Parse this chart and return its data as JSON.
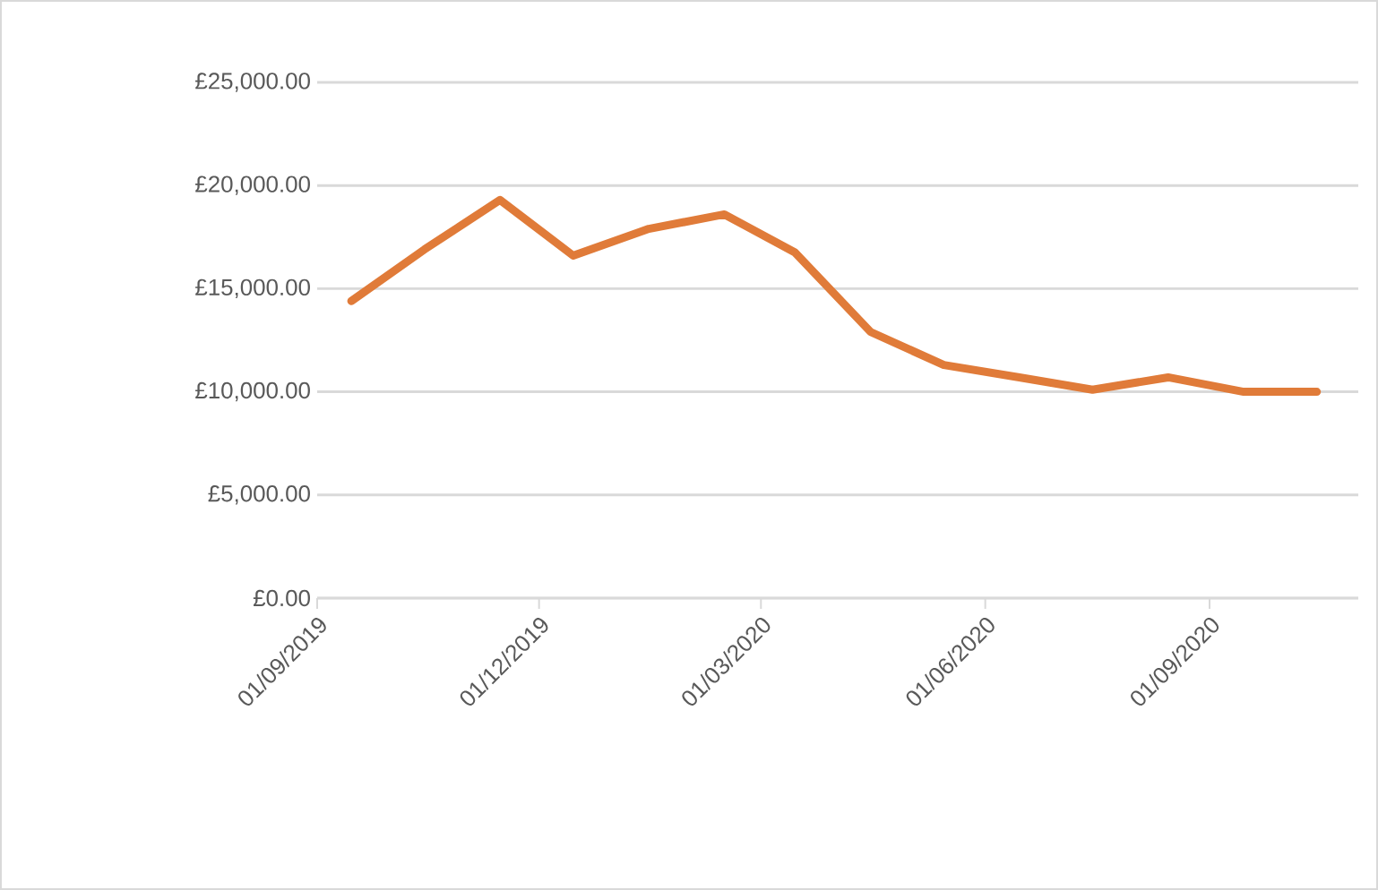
{
  "chart_data": {
    "type": "line",
    "x": [
      "2019-09-15",
      "2019-10-15",
      "2019-11-15",
      "2019-12-15",
      "2020-01-15",
      "2020-02-15",
      "2020-03-15",
      "2020-04-15",
      "2020-05-15",
      "2020-06-15",
      "2020-07-15",
      "2020-08-15",
      "2020-09-15",
      "2020-10-15"
    ],
    "series": [
      {
        "color": "#e07b39",
        "values": [
          14400,
          16900,
          19300,
          16600,
          17900,
          18600,
          16750,
          12900,
          11300,
          10700,
          10100,
          10700,
          10000,
          10000
        ]
      }
    ],
    "xlim": [
      "2019-09-01",
      "2020-11-01"
    ],
    "xticks": [
      {
        "value": "2019-09-01",
        "label": "01/09/2019"
      },
      {
        "value": "2019-12-01",
        "label": "01/12/2019"
      },
      {
        "value": "2020-03-01",
        "label": "01/03/2020"
      },
      {
        "value": "2020-06-01",
        "label": "01/06/2020"
      },
      {
        "value": "2020-09-01",
        "label": "01/09/2020"
      }
    ],
    "ylim": [
      0,
      25000
    ],
    "yticks": [
      {
        "value": 0,
        "label": "£0.00"
      },
      {
        "value": 5000,
        "label": "£5,000.00"
      },
      {
        "value": 10000,
        "label": "£10,000.00"
      },
      {
        "value": 15000,
        "label": "£15,000.00"
      },
      {
        "value": 20000,
        "label": "£20,000.00"
      },
      {
        "value": 25000,
        "label": "£25,000.00"
      }
    ],
    "grid": "y",
    "marker": "none",
    "line_style": "solid"
  }
}
